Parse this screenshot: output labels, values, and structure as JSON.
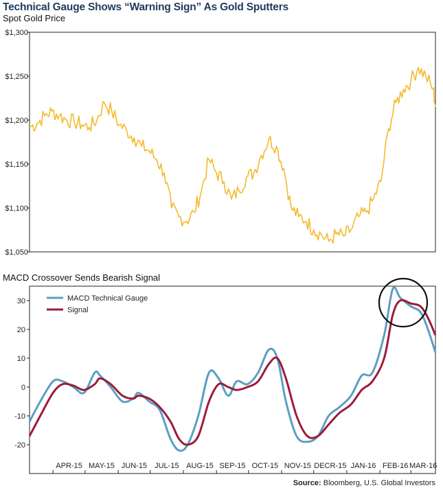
{
  "page_title": "Technical Gauge Shows “Warning Sign” As Gold Sputters",
  "source": {
    "label": "Source:",
    "text": "Bloomberg, U.S. Global Investors"
  },
  "colors": {
    "gold": "#f5b92c",
    "macd": "#5a9fc2",
    "signal": "#9b1b3c",
    "axis": "#222222",
    "title": "#1f3b5c",
    "circle": "#111111"
  },
  "chart_data": [
    {
      "type": "line",
      "subtitle": "Spot Gold Price",
      "ylim": [
        1050,
        1300
      ],
      "yticks": [
        "$1,050",
        "$1,100",
        "$1,150",
        "$1,200",
        "$1,250",
        "$1,300"
      ],
      "x_start": "2015-03-10",
      "x_end": "2016-03-24",
      "grid": false,
      "series": [
        {
          "color": "#f5b92c",
          "points": [
            [
              "2015-03-10",
              1192
            ],
            [
              "2015-03-17",
              1196
            ],
            [
              "2015-03-24",
              1205
            ],
            [
              "2015-03-31",
              1210
            ],
            [
              "2015-04-07",
              1205
            ],
            [
              "2015-04-14",
              1200
            ],
            [
              "2015-04-21",
              1198
            ],
            [
              "2015-04-28",
              1195
            ],
            [
              "2015-05-05",
              1192
            ],
            [
              "2015-05-12",
              1200
            ],
            [
              "2015-05-19",
              1220
            ],
            [
              "2015-05-26",
              1210
            ],
            [
              "2015-06-02",
              1195
            ],
            [
              "2015-06-09",
              1188
            ],
            [
              "2015-06-16",
              1180
            ],
            [
              "2015-06-23",
              1170
            ],
            [
              "2015-06-30",
              1165
            ],
            [
              "2015-07-07",
              1155
            ],
            [
              "2015-07-14",
              1140
            ],
            [
              "2015-07-21",
              1100
            ],
            [
              "2015-07-28",
              1090
            ],
            [
              "2015-08-04",
              1085
            ],
            [
              "2015-08-11",
              1095
            ],
            [
              "2015-08-18",
              1120
            ],
            [
              "2015-08-25",
              1155
            ],
            [
              "2015-09-01",
              1140
            ],
            [
              "2015-09-08",
              1130
            ],
            [
              "2015-09-15",
              1110
            ],
            [
              "2015-09-22",
              1120
            ],
            [
              "2015-09-29",
              1135
            ],
            [
              "2015-10-06",
              1140
            ],
            [
              "2015-10-13",
              1160
            ],
            [
              "2015-10-20",
              1178
            ],
            [
              "2015-10-27",
              1170
            ],
            [
              "2015-11-03",
              1145
            ],
            [
              "2015-11-10",
              1100
            ],
            [
              "2015-11-17",
              1090
            ],
            [
              "2015-11-24",
              1085
            ],
            [
              "2015-12-01",
              1075
            ],
            [
              "2015-12-08",
              1070
            ],
            [
              "2015-12-15",
              1062
            ],
            [
              "2015-12-22",
              1070
            ],
            [
              "2015-12-29",
              1068
            ],
            [
              "2016-01-05",
              1075
            ],
            [
              "2016-01-12",
              1090
            ],
            [
              "2016-01-19",
              1095
            ],
            [
              "2016-01-26",
              1110
            ],
            [
              "2016-02-02",
              1130
            ],
            [
              "2016-02-09",
              1190
            ],
            [
              "2016-02-16",
              1220
            ],
            [
              "2016-02-23",
              1235
            ],
            [
              "2016-03-01",
              1245
            ],
            [
              "2016-03-08",
              1260
            ],
            [
              "2016-03-15",
              1250
            ],
            [
              "2016-03-22",
              1235
            ],
            [
              "2016-03-24",
              1215
            ]
          ]
        }
      ]
    },
    {
      "type": "line",
      "subtitle": "MACD Crossover Sends Bearish Signal",
      "ylim": [
        -30,
        35
      ],
      "yticks": [
        "-20",
        "-10",
        "0",
        "10",
        "20",
        "30"
      ],
      "x_start": "2015-03-10",
      "x_end": "2016-03-24",
      "xticks": [
        "APR-15",
        "MAY-15",
        "JUN-15",
        "JUL-15",
        "AUG-15",
        "SEP-15",
        "OCT-15",
        "NOV-15",
        "DECR-15",
        "JAN-16",
        "FEB-16",
        "MAR-16"
      ],
      "legend_position": "top-left",
      "grid": false,
      "annotation": "circle around the crossover near the February–March 2016 peak",
      "series": [
        {
          "name": "MACD Technical Gauge",
          "color": "#5a9fc2",
          "points": [
            [
              "2015-03-10",
              -12
            ],
            [
              "2015-03-20",
              -5
            ],
            [
              "2015-04-01",
              2
            ],
            [
              "2015-04-10",
              2
            ],
            [
              "2015-04-20",
              0
            ],
            [
              "2015-04-30",
              -2
            ],
            [
              "2015-05-10",
              5
            ],
            [
              "2015-05-15",
              4
            ],
            [
              "2015-05-25",
              0
            ],
            [
              "2015-06-05",
              -5
            ],
            [
              "2015-06-15",
              -4
            ],
            [
              "2015-06-20",
              -2
            ],
            [
              "2015-06-30",
              -5
            ],
            [
              "2015-07-10",
              -8
            ],
            [
              "2015-07-20",
              -18
            ],
            [
              "2015-07-28",
              -22
            ],
            [
              "2015-08-05",
              -20
            ],
            [
              "2015-08-15",
              -10
            ],
            [
              "2015-08-25",
              5
            ],
            [
              "2015-09-03",
              3
            ],
            [
              "2015-09-12",
              -3
            ],
            [
              "2015-09-20",
              2
            ],
            [
              "2015-09-30",
              1
            ],
            [
              "2015-10-10",
              5
            ],
            [
              "2015-10-20",
              13
            ],
            [
              "2015-10-28",
              10
            ],
            [
              "2015-11-05",
              -5
            ],
            [
              "2015-11-15",
              -17
            ],
            [
              "2015-11-25",
              -19
            ],
            [
              "2015-12-05",
              -17
            ],
            [
              "2015-12-15",
              -10
            ],
            [
              "2015-12-25",
              -7
            ],
            [
              "2016-01-05",
              -3
            ],
            [
              "2016-01-15",
              4
            ],
            [
              "2016-01-25",
              5
            ],
            [
              "2016-02-05",
              18
            ],
            [
              "2016-02-13",
              34
            ],
            [
              "2016-02-20",
              31
            ],
            [
              "2016-03-01",
              28
            ],
            [
              "2016-03-10",
              26
            ],
            [
              "2016-03-17",
              20
            ],
            [
              "2016-03-24",
              12
            ]
          ]
        },
        {
          "name": "Signal",
          "color": "#9b1b3c",
          "points": [
            [
              "2015-03-10",
              -17
            ],
            [
              "2015-03-20",
              -10
            ],
            [
              "2015-04-01",
              -2
            ],
            [
              "2015-04-10",
              1
            ],
            [
              "2015-04-20",
              0.5
            ],
            [
              "2015-04-30",
              -1
            ],
            [
              "2015-05-10",
              1
            ],
            [
              "2015-05-15",
              3
            ],
            [
              "2015-05-25",
              1
            ],
            [
              "2015-06-05",
              -3
            ],
            [
              "2015-06-15",
              -4
            ],
            [
              "2015-06-20",
              -3
            ],
            [
              "2015-06-30",
              -4
            ],
            [
              "2015-07-10",
              -7
            ],
            [
              "2015-07-20",
              -12
            ],
            [
              "2015-07-28",
              -18
            ],
            [
              "2015-08-05",
              -20
            ],
            [
              "2015-08-15",
              -17
            ],
            [
              "2015-08-25",
              -5
            ],
            [
              "2015-09-03",
              1
            ],
            [
              "2015-09-12",
              0
            ],
            [
              "2015-09-20",
              -1
            ],
            [
              "2015-09-30",
              0
            ],
            [
              "2015-10-10",
              2
            ],
            [
              "2015-10-20",
              8
            ],
            [
              "2015-10-28",
              10
            ],
            [
              "2015-11-05",
              3
            ],
            [
              "2015-11-15",
              -10
            ],
            [
              "2015-11-25",
              -17
            ],
            [
              "2015-12-05",
              -17
            ],
            [
              "2015-12-15",
              -13
            ],
            [
              "2015-12-25",
              -9
            ],
            [
              "2016-01-05",
              -6
            ],
            [
              "2016-01-15",
              -1
            ],
            [
              "2016-01-25",
              2
            ],
            [
              "2016-02-05",
              10
            ],
            [
              "2016-02-13",
              25
            ],
            [
              "2016-02-20",
              30
            ],
            [
              "2016-03-01",
              29
            ],
            [
              "2016-03-10",
              28
            ],
            [
              "2016-03-17",
              24
            ],
            [
              "2016-03-24",
              18
            ]
          ]
        }
      ]
    }
  ]
}
